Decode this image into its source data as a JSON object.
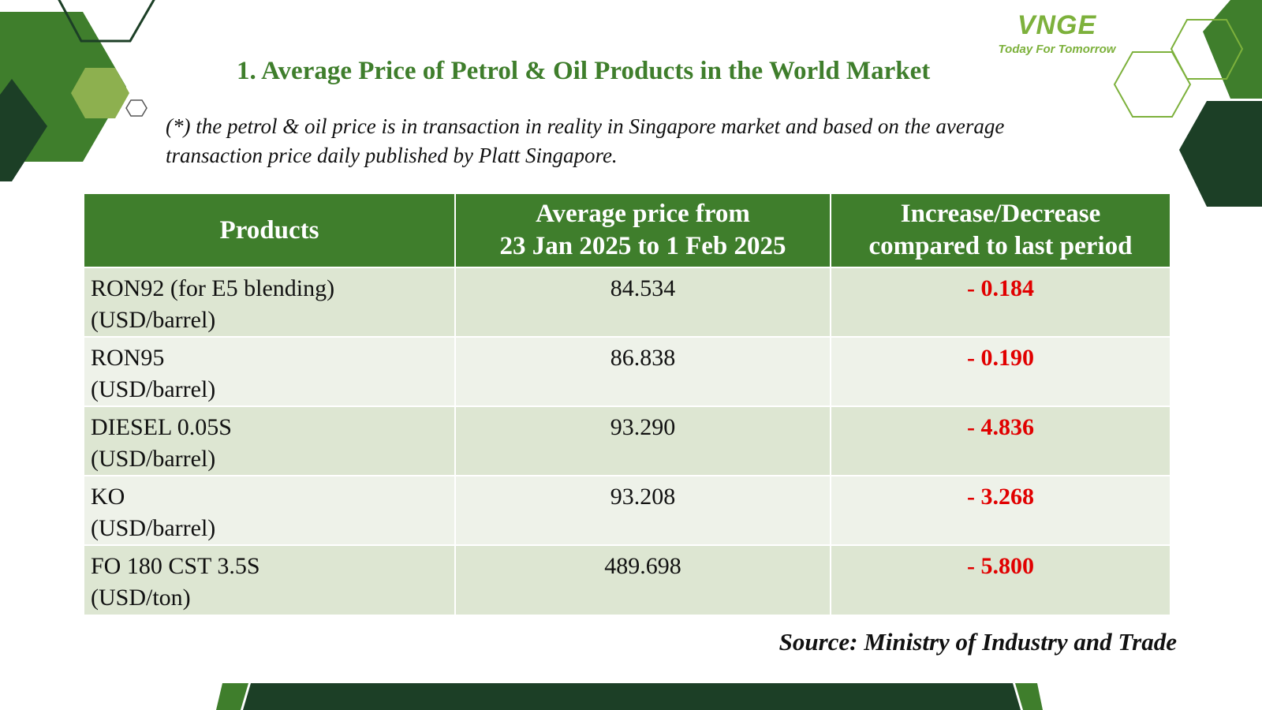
{
  "logo": {
    "mark": "VNGE",
    "tagline": "Today For Tomorrow"
  },
  "title": "1. Average Price of Petrol & Oil Products in the World Market",
  "note": {
    "line1": "(*) the petrol & oil price is in transaction in reality in Singapore market and based on the average",
    "line2": "transaction price daily published by Platt Singapore."
  },
  "table": {
    "headers": {
      "product": "Products",
      "price_line1": "Average price from",
      "price_line2": "23 Jan 2025 to 1 Feb 2025",
      "change_line1": "Increase/Decrease",
      "change_line2": "compared to last period"
    },
    "rows": [
      {
        "name": "RON92 (for E5 blending)",
        "unit": "(USD/barrel)",
        "price": "84.534",
        "change": "- 0.184"
      },
      {
        "name": "RON95",
        "unit": "(USD/barrel)",
        "price": "86.838",
        "change": "- 0.190"
      },
      {
        "name": "DIESEL 0.05S",
        "unit": "(USD/barrel)",
        "price": "93.290",
        "change": "- 4.836"
      },
      {
        "name": "KO",
        "unit": "(USD/barrel)",
        "price": "93.208",
        "change": "- 3.268"
      },
      {
        "name": "FO 180 CST 3.5S",
        "unit": "(USD/ton)",
        "price": "489.698",
        "change": "- 5.800"
      }
    ]
  },
  "source": "Source: Ministry of Industry and Trade",
  "colors": {
    "header_green": "#3f7e2c",
    "dark_green": "#1c3f26",
    "light_green": "#7db13c",
    "decrease_red": "#e10000",
    "row_odd": "#dde6d2",
    "row_even": "#eef2e9"
  }
}
